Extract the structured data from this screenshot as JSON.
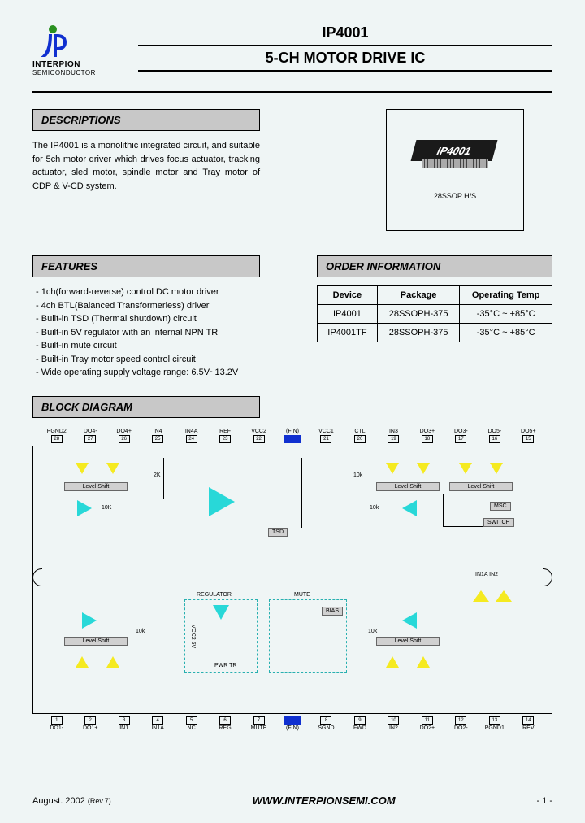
{
  "header": {
    "logo_name": "INTERPION",
    "logo_sub": "SEMICONDUCTOR",
    "part_number": "IP4001",
    "subtitle": "5-CH MOTOR DRIVE IC"
  },
  "descriptions": {
    "title": "DESCRIPTIONS",
    "text": "The IP4001 is a monolithic integrated circuit, and suitable for 5ch motor driver which drives focus actuator, tracking actuator, sled motor, spindle motor and Tray motor of CDP & V-CD system."
  },
  "chip": {
    "label": "IP4001",
    "package_label": "28SSOP H/S"
  },
  "features": {
    "title": "FEATURES",
    "items": [
      "1ch(forward-reverse) control DC motor driver",
      "4ch BTL(Balanced Transformerless) driver",
      "Built-in TSD (Thermal shutdown) circuit",
      "Built-in 5V regulator with an internal NPN TR",
      "Built-in mute circuit",
      "Built-in Tray motor speed control circuit",
      "Wide operating supply voltage range: 6.5V~13.2V"
    ]
  },
  "order": {
    "title": "ORDER INFORMATION",
    "columns": [
      "Device",
      "Package",
      "Operating Temp"
    ],
    "rows": [
      [
        "IP4001",
        "28SSOPH-375",
        "-35°C ~ +85°C"
      ],
      [
        "IP4001TF",
        "28SSOPH-375",
        "-35°C ~ +85°C"
      ]
    ]
  },
  "block_diagram": {
    "title": "BLOCK DIAGRAM",
    "top_pins": [
      {
        "name": "PGND2",
        "n": "28"
      },
      {
        "name": "DO4-",
        "n": "27"
      },
      {
        "name": "DO4+",
        "n": "26"
      },
      {
        "name": "IN4",
        "n": "25"
      },
      {
        "name": "IN4A",
        "n": "24"
      },
      {
        "name": "REF",
        "n": "23"
      },
      {
        "name": "VCC2",
        "n": "22"
      },
      {
        "name": "(FIN)",
        "n": "",
        "blue": true
      },
      {
        "name": "VCC1",
        "n": "21"
      },
      {
        "name": "CTL",
        "n": "20"
      },
      {
        "name": "IN3",
        "n": "19"
      },
      {
        "name": "DO3+",
        "n": "18"
      },
      {
        "name": "DO3-",
        "n": "17"
      },
      {
        "name": "DO5-",
        "n": "16"
      },
      {
        "name": "DO5+",
        "n": "15"
      }
    ],
    "bottom_pins": [
      {
        "name": "DO1-",
        "n": "1"
      },
      {
        "name": "DO1+",
        "n": "2"
      },
      {
        "name": "IN1",
        "n": "3"
      },
      {
        "name": "IN1A",
        "n": "4"
      },
      {
        "name": "NC",
        "n": "5"
      },
      {
        "name": "REG",
        "n": "6"
      },
      {
        "name": "MUTE",
        "n": "7"
      },
      {
        "name": "(FIN)",
        "n": "",
        "blue": true
      },
      {
        "name": "SGND",
        "n": "8"
      },
      {
        "name": "FWD",
        "n": "9"
      },
      {
        "name": "IN2",
        "n": "10"
      },
      {
        "name": "DO2+",
        "n": "11"
      },
      {
        "name": "DO2-",
        "n": "12"
      },
      {
        "name": "PGND1",
        "n": "13"
      },
      {
        "name": "REV",
        "n": "14"
      }
    ],
    "blocks": {
      "tsd": "TSD",
      "bias": "BIAS",
      "msc": "MSC",
      "switch": "SWITCH",
      "level_shift": "Level Shift",
      "regulator": "REGULATOR",
      "mute": "MUTE",
      "vcc2_5v": "VCC2 5V",
      "pwr_tr": "PWR TR",
      "in1a_in2": "IN1A IN2",
      "r_2k": "2K",
      "r_10k": "10K",
      "r_s": "10k"
    },
    "colors": {
      "amp_cyan": "#28d8d8",
      "amp_yellow": "#f5ea20",
      "block_gray": "#d0d0d0",
      "fin_blue": "#1030d0"
    }
  },
  "footer": {
    "date": "August. 2002",
    "rev": "(Rev.7)",
    "url": "WWW.INTERPIONSEMI.COM",
    "page": "- 1 -"
  }
}
